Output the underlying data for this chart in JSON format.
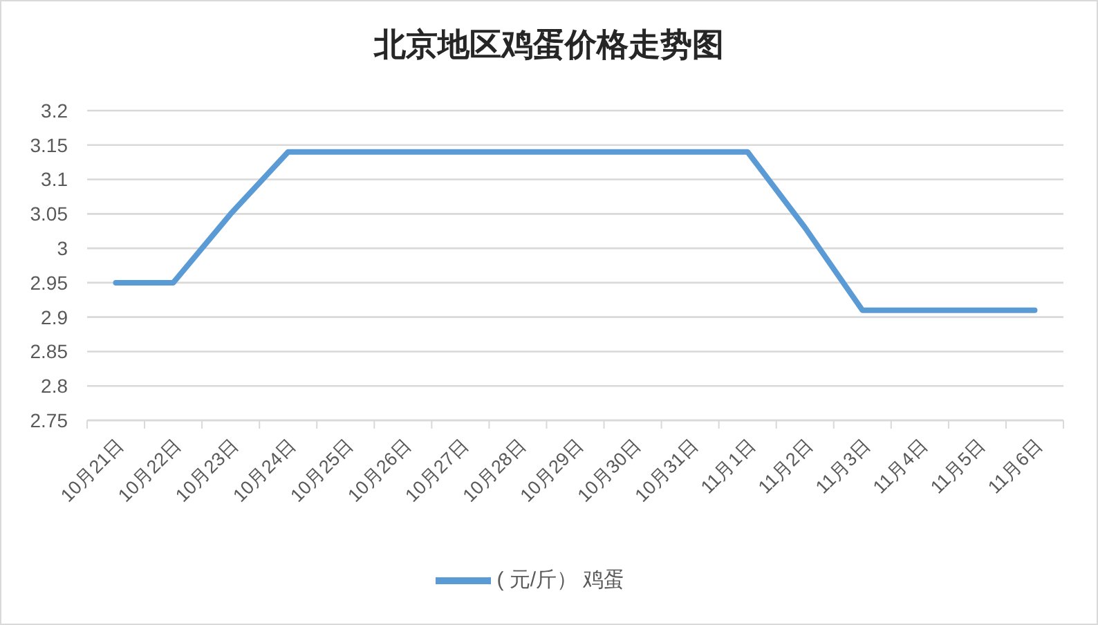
{
  "chart_data": {
    "type": "line",
    "title": "北京地区鸡蛋价格走势图",
    "categories": [
      "10月21日",
      "10月22日",
      "10月23日",
      "10月24日",
      "10月25日",
      "10月26日",
      "10月27日",
      "10月28日",
      "10月29日",
      "10月30日",
      "10月31日",
      "11月1日",
      "11月2日",
      "11月3日",
      "11月4日",
      "11月5日",
      "11月6日"
    ],
    "series": [
      {
        "name": "( 元/斤） 鸡蛋",
        "color": "#5b9bd5",
        "values": [
          2.95,
          2.95,
          3.05,
          3.14,
          3.14,
          3.14,
          3.14,
          3.14,
          3.14,
          3.14,
          3.14,
          3.14,
          3.03,
          2.91,
          2.91,
          2.91,
          2.91
        ]
      }
    ],
    "ylim": [
      2.75,
      3.2
    ],
    "yticks": [
      2.75,
      2.8,
      2.85,
      2.9,
      2.95,
      3,
      3.05,
      3.1,
      3.15,
      3.2
    ],
    "grid": "y",
    "legend": "bottom",
    "marker": "none",
    "line_style": "solid"
  }
}
